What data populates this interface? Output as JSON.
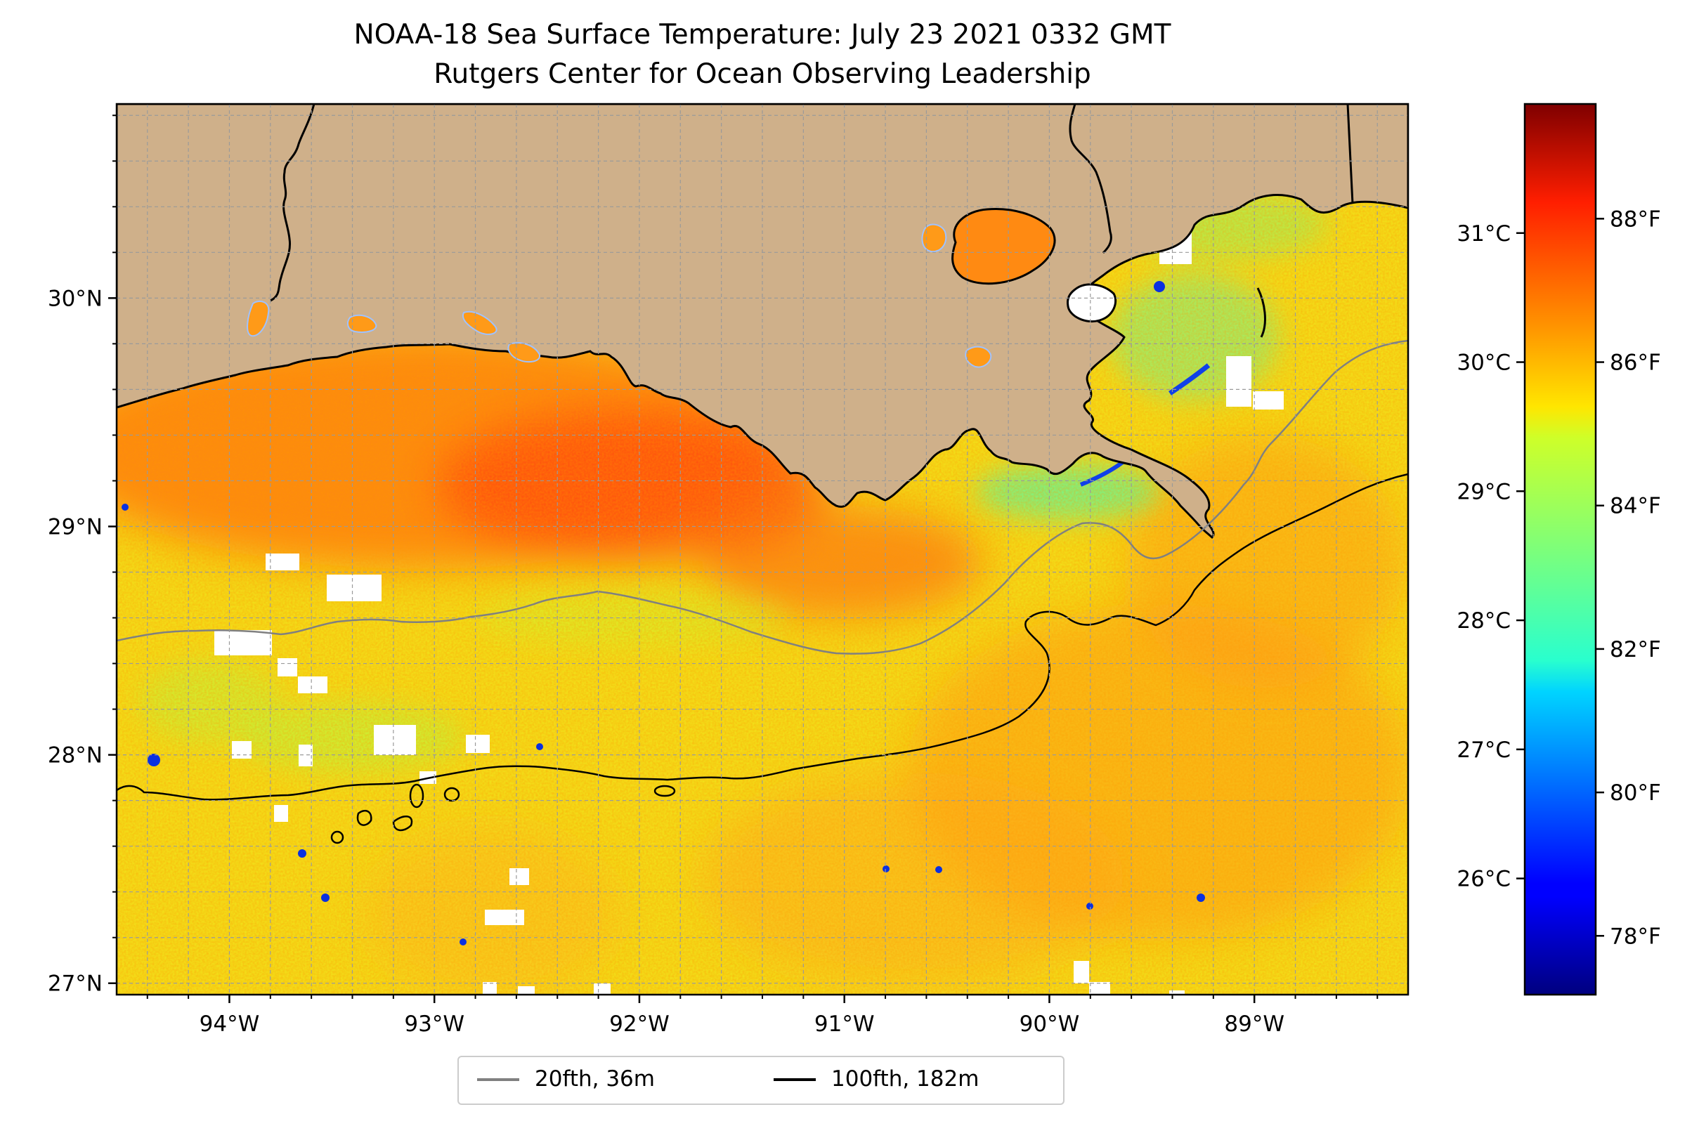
{
  "title": {
    "line1": "NOAA-18 Sea Surface Temperature: July 23 2021 0332 GMT",
    "line2": "Rutgers Center for Ocean Observing Leadership"
  },
  "colors": {
    "land": "#cfb08a",
    "coastline": "#000000",
    "isobath_20": "#808080",
    "isobath_100": "#000000",
    "grid": "#9a9a9a",
    "colormap": "jet"
  },
  "map": {
    "extent_lon": [
      -94.55,
      -88.25
    ],
    "extent_lat": [
      26.95,
      30.85
    ],
    "lon_ticks": [
      {
        "value": -94,
        "label": "94°W"
      },
      {
        "value": -93,
        "label": "93°W"
      },
      {
        "value": -92,
        "label": "92°W"
      },
      {
        "value": -91,
        "label": "91°W"
      },
      {
        "value": -90,
        "label": "90°W"
      },
      {
        "value": -89,
        "label": "89°W"
      }
    ],
    "lat_ticks": [
      {
        "value": 30,
        "label": "30°N"
      },
      {
        "value": 29,
        "label": "29°N"
      },
      {
        "value": 28,
        "label": "28°N"
      },
      {
        "value": 27,
        "label": "27°N"
      }
    ],
    "grid": true
  },
  "colorbar": {
    "range_c": [
      25.1,
      32.0
    ],
    "celsius_ticks": [
      {
        "value": 26,
        "label": "26°C"
      },
      {
        "value": 27,
        "label": "27°C"
      },
      {
        "value": 28,
        "label": "28°C"
      },
      {
        "value": 29,
        "label": "29°C"
      },
      {
        "value": 30,
        "label": "30°C"
      },
      {
        "value": 31,
        "label": "31°C"
      }
    ],
    "fahrenheit_ticks": [
      {
        "value": 78,
        "label": "78°F"
      },
      {
        "value": 80,
        "label": "80°F"
      },
      {
        "value": 82,
        "label": "82°F"
      },
      {
        "value": 84,
        "label": "84°F"
      },
      {
        "value": 86,
        "label": "86°F"
      },
      {
        "value": 88,
        "label": "88°F"
      }
    ]
  },
  "legend": {
    "items": [
      {
        "label": "20fth, 36m",
        "color": "#808080"
      },
      {
        "label": "100fth, 182m",
        "color": "#000000"
      }
    ]
  }
}
